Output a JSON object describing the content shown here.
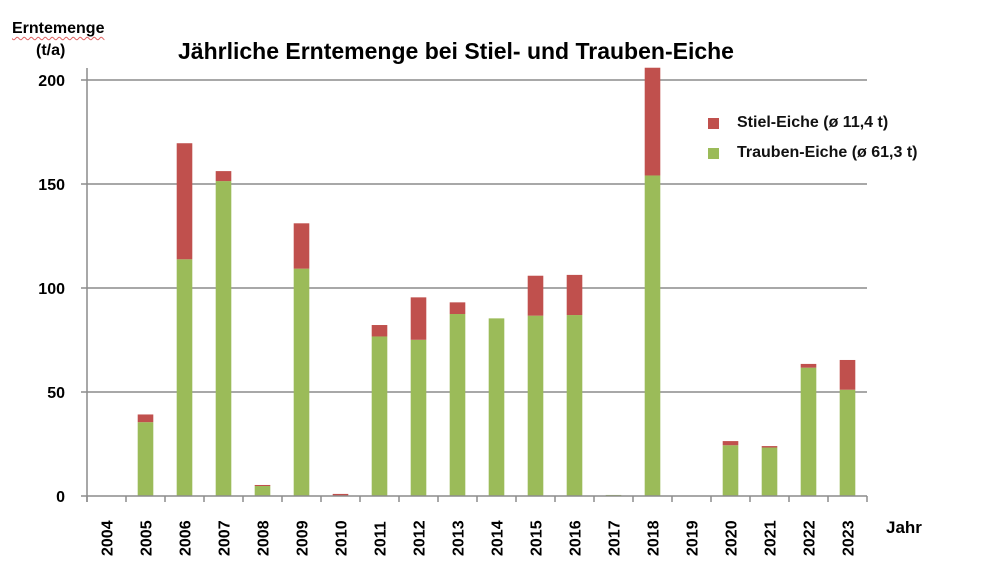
{
  "chart_data": {
    "type": "bar",
    "stacked": true,
    "title": "Jährliche Erntemenge bei Stiel- und Trauben-Eiche",
    "ylabel_line1": "Erntemenge",
    "ylabel_line2": "(t/a)",
    "xlabel": "Jahr",
    "ylim": [
      0,
      200
    ],
    "yticks": [
      0,
      50,
      100,
      150,
      200
    ],
    "grid": true,
    "legend_position": "top-right",
    "categories": [
      "2004",
      "2005",
      "2006",
      "2007",
      "2008",
      "2009",
      "2010",
      "2011",
      "2012",
      "2013",
      "2014",
      "2015",
      "2016",
      "2017",
      "2018",
      "2019",
      "2020",
      "2021",
      "2022",
      "2023"
    ],
    "series": [
      {
        "name": "Trauben-Eiche",
        "legend_label": "Trauben-Eiche (ø 61,3 t)",
        "color": "#9bbb59",
        "values": [
          0,
          35.5,
          113.8,
          151.4,
          4.8,
          109.3,
          0,
          76.7,
          75.1,
          87.5,
          85.4,
          86.7,
          87.0,
          0.5,
          154.1,
          0,
          24.4,
          23.3,
          61.7,
          51.1
        ]
      },
      {
        "name": "Stiel-Eiche",
        "legend_label": "Stiel-Eiche (ø 11,4 t)",
        "color": "#c0504d",
        "values": [
          0,
          3.7,
          55.8,
          4.8,
          0.5,
          21.8,
          1.0,
          5.5,
          20.4,
          5.6,
          0,
          19.2,
          19.3,
          0,
          51.8,
          0,
          2.0,
          0.7,
          1.8,
          14.3
        ]
      }
    ],
    "legend_order": [
      "Stiel-Eiche",
      "Trauben-Eiche"
    ]
  }
}
